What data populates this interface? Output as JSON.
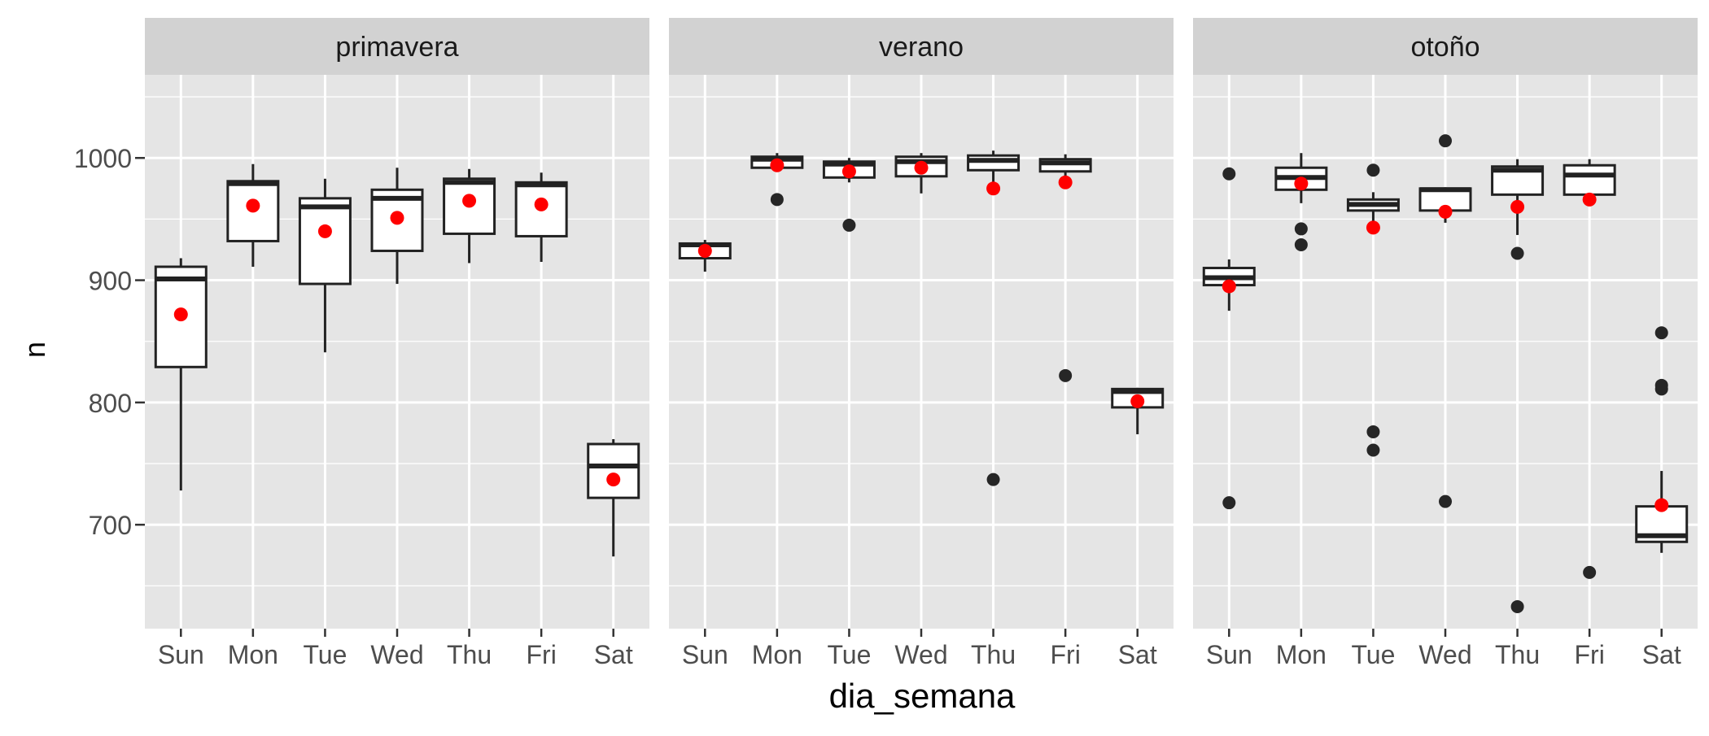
{
  "chart_data": {
    "type": "boxplot",
    "xlabel": "dia_semana",
    "ylabel": "n",
    "ylim": [
      615,
      1068
    ],
    "yticks": [
      700,
      800,
      900,
      1000
    ],
    "categories": [
      "Sun",
      "Mon",
      "Tue",
      "Wed",
      "Thu",
      "Fri",
      "Sat"
    ],
    "colors": {
      "panel_bg": "#e5e5e5",
      "strip_bg": "#d2d2d2",
      "grid": "#ffffff",
      "box_fill": "#ffffff",
      "box_line": "#222222",
      "outlier": "#262626",
      "mean": "#ff0000",
      "tick_text": "#4d4d4d",
      "title_text": "#1a1a1a"
    },
    "panels": [
      {
        "name": "primavera",
        "boxes": [
          {
            "cat": "Sun",
            "lower": 728,
            "q1": 829,
            "median": 901,
            "q3": 911,
            "upper": 918,
            "mean": 872,
            "outliers": []
          },
          {
            "cat": "Mon",
            "lower": 911,
            "q1": 932,
            "median": 979,
            "q3": 981,
            "upper": 995,
            "mean": 961,
            "outliers": []
          },
          {
            "cat": "Tue",
            "lower": 841,
            "q1": 897,
            "median": 960,
            "q3": 967,
            "upper": 983,
            "mean": 940,
            "outliers": []
          },
          {
            "cat": "Wed",
            "lower": 897,
            "q1": 924,
            "median": 967,
            "q3": 974,
            "upper": 992,
            "mean": 951,
            "outliers": []
          },
          {
            "cat": "Thu",
            "lower": 914,
            "q1": 938,
            "median": 980,
            "q3": 983,
            "upper": 991,
            "mean": 965,
            "outliers": []
          },
          {
            "cat": "Fri",
            "lower": 915,
            "q1": 936,
            "median": 978,
            "q3": 980,
            "upper": 988,
            "mean": 962,
            "outliers": []
          },
          {
            "cat": "Sat",
            "lower": 674,
            "q1": 722,
            "median": 748,
            "q3": 766,
            "upper": 770,
            "mean": 737,
            "outliers": []
          }
        ]
      },
      {
        "name": "verano",
        "boxes": [
          {
            "cat": "Sun",
            "lower": 907,
            "q1": 918,
            "median": 929,
            "q3": 930,
            "upper": 933,
            "mean": 924,
            "outliers": []
          },
          {
            "cat": "Mon",
            "lower": 990,
            "q1": 992,
            "median": 999,
            "q3": 1001,
            "upper": 1004,
            "mean": 994,
            "outliers": [
              966
            ]
          },
          {
            "cat": "Tue",
            "lower": 980,
            "q1": 984,
            "median": 995,
            "q3": 997,
            "upper": 1000,
            "mean": 989,
            "outliers": [
              945
            ]
          },
          {
            "cat": "Wed",
            "lower": 971,
            "q1": 985,
            "median": 997,
            "q3": 1001,
            "upper": 1004,
            "mean": 992,
            "outliers": []
          },
          {
            "cat": "Thu",
            "lower": 974,
            "q1": 990,
            "median": 998,
            "q3": 1002,
            "upper": 1006,
            "mean": 975,
            "outliers": [
              737
            ]
          },
          {
            "cat": "Fri",
            "lower": 984,
            "q1": 989,
            "median": 996,
            "q3": 999,
            "upper": 1003,
            "mean": 980,
            "outliers": [
              822
            ]
          },
          {
            "cat": "Sat",
            "lower": 774,
            "q1": 796,
            "median": 809,
            "q3": 811,
            "upper": 812,
            "mean": 801,
            "outliers": []
          }
        ]
      },
      {
        "name": "otoño",
        "boxes": [
          {
            "cat": "Sun",
            "lower": 875,
            "q1": 896,
            "median": 902,
            "q3": 910,
            "upper": 917,
            "mean": 895,
            "outliers": [
              987,
              718
            ]
          },
          {
            "cat": "Mon",
            "lower": 963,
            "q1": 974,
            "median": 984,
            "q3": 992,
            "upper": 1004,
            "mean": 979,
            "outliers": [
              942,
              929
            ]
          },
          {
            "cat": "Tue",
            "lower": 946,
            "q1": 957,
            "median": 962,
            "q3": 966,
            "upper": 972,
            "mean": 943,
            "outliers": [
              990,
              776,
              761
            ]
          },
          {
            "cat": "Wed",
            "lower": 947,
            "q1": 957,
            "median": 974,
            "q3": 975,
            "upper": 976,
            "mean": 956,
            "outliers": [
              1014,
              719
            ]
          },
          {
            "cat": "Thu",
            "lower": 937,
            "q1": 970,
            "median": 990,
            "q3": 993,
            "upper": 999,
            "mean": 960,
            "outliers": [
              922,
              633
            ]
          },
          {
            "cat": "Fri",
            "lower": 966,
            "q1": 970,
            "median": 986,
            "q3": 994,
            "upper": 999,
            "mean": 966,
            "outliers": [
              661
            ]
          },
          {
            "cat": "Sat",
            "lower": 677,
            "q1": 686,
            "median": 691,
            "q3": 715,
            "upper": 744,
            "mean": 716,
            "outliers": [
              857,
              814,
              811
            ]
          }
        ]
      }
    ]
  }
}
